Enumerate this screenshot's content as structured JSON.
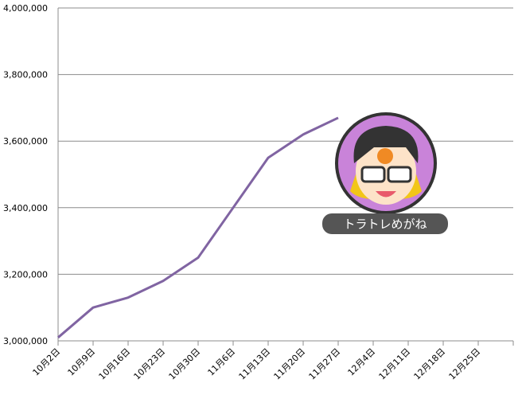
{
  "chart_data": {
    "type": "line",
    "categories": [
      "10月2日",
      "10月9日",
      "10月16日",
      "10月23日",
      "10月30日",
      "11月6日",
      "11月13日",
      "11月20日",
      "11月27日",
      "12月4日",
      "12月11日",
      "12月18日",
      "12月25日"
    ],
    "series": [
      {
        "name": null,
        "color": "#8064a2",
        "values": [
          3010000,
          3100000,
          3130000,
          3180000,
          3250000,
          3400000,
          3550000,
          3620000,
          3670000,
          null,
          null,
          null,
          null
        ]
      }
    ],
    "ylim": [
      3000000,
      4000000
    ],
    "yticks": [
      {
        "value": 3000000,
        "label": "3,000,000"
      },
      {
        "value": 3200000,
        "label": "3,200,000"
      },
      {
        "value": 3400000,
        "label": "3,400,000"
      },
      {
        "value": 3600000,
        "label": "3,600,000"
      },
      {
        "value": 3800000,
        "label": "3,800,000"
      },
      {
        "value": 4000000,
        "label": "4,000,000"
      }
    ],
    "grid": true,
    "annotations": [
      "トラトレめがね"
    ]
  }
}
